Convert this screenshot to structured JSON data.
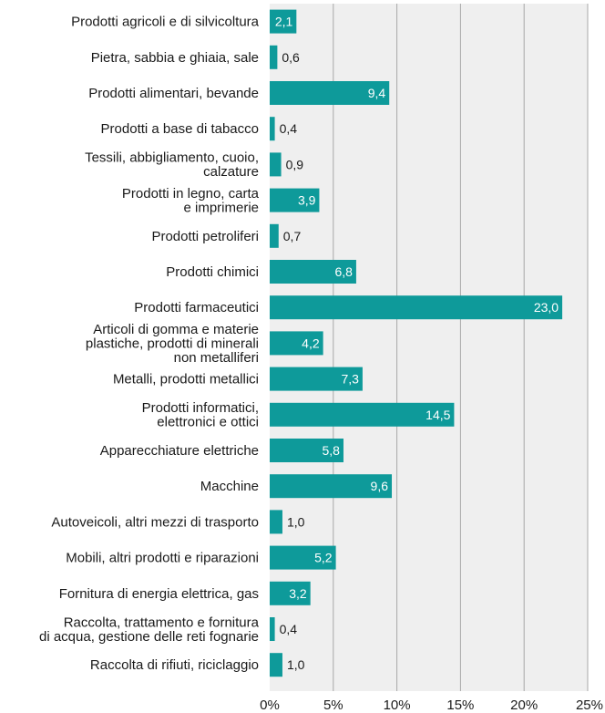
{
  "chart_data": {
    "type": "bar",
    "orientation": "horizontal",
    "title": "",
    "xlabel": "",
    "ylabel": "",
    "xlim": [
      0,
      25
    ],
    "x_ticks": [
      {
        "value": 0,
        "label": "0%"
      },
      {
        "value": 5,
        "label": "5%"
      },
      {
        "value": 10,
        "label": "10%"
      },
      {
        "value": 15,
        "label": "15%"
      },
      {
        "value": 20,
        "label": "20%"
      },
      {
        "value": 25,
        "label": "25%"
      }
    ],
    "grid": true,
    "colors": {
      "bar": "#0e9a9a",
      "plot_bg": "#efefef",
      "grid": "#a8a8a8"
    },
    "categories": [
      [
        "Prodotti agricoli e di silvicoltura"
      ],
      [
        "Pietra, sabbia e ghiaia, sale"
      ],
      [
        "Prodotti alimentari, bevande"
      ],
      [
        "Prodotti a base di tabacco"
      ],
      [
        "Tessili, abbigliamento, cuoio,",
        "calzature"
      ],
      [
        "Prodotti in legno, carta",
        "e imprimerie"
      ],
      [
        "Prodotti petroliferi"
      ],
      [
        "Prodotti chimici"
      ],
      [
        "Prodotti farmaceutici"
      ],
      [
        "Articoli di gomma e materie",
        "plastiche, prodotti di minerali",
        "non metalliferi"
      ],
      [
        "Metalli, prodotti metallici"
      ],
      [
        "Prodotti informatici,",
        "elettronici e ottici"
      ],
      [
        "Apparecchiature elettriche"
      ],
      [
        "Macchine"
      ],
      [
        "Autoveicoli, altri mezzi di trasporto"
      ],
      [
        "Mobili, altri prodotti e riparazioni"
      ],
      [
        "Fornitura di energia elettrica, gas"
      ],
      [
        "Raccolta, trattamento e fornitura",
        "di acqua, gestione delle reti fognarie"
      ],
      [
        "Raccolta di rifiuti, riciclaggio"
      ]
    ],
    "values": [
      2.1,
      0.6,
      9.4,
      0.4,
      0.9,
      3.9,
      0.7,
      6.8,
      23.0,
      4.2,
      7.3,
      14.5,
      5.8,
      9.6,
      1.0,
      5.2,
      3.2,
      0.4,
      1.0
    ],
    "value_labels": [
      "2,1",
      "0,6",
      "9,4",
      "0,4",
      "0,9",
      "3,9",
      "0,7",
      "6,8",
      "23,0",
      "4,2",
      "7,3",
      "14,5",
      "5,8",
      "9,6",
      "1,0",
      "5,2",
      "3,2",
      "0,4",
      "1,0"
    ]
  }
}
